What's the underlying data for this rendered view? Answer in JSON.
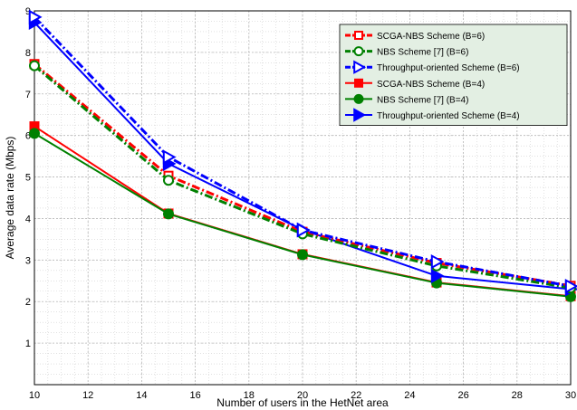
{
  "chart_data": {
    "type": "line",
    "xlabel": "Number of users in the HetNet area",
    "ylabel": "Average data rate (Mbps)",
    "xlim": [
      10,
      30
    ],
    "ylim": [
      0,
      9
    ],
    "xticks": [
      10,
      12,
      14,
      16,
      18,
      20,
      22,
      24,
      26,
      28,
      30
    ],
    "yticks": [
      1,
      2,
      3,
      4,
      5,
      6,
      7,
      8,
      9
    ],
    "grid": true,
    "minor_grid": true,
    "legend_position": "top-right",
    "legend_background": "#e3efe3",
    "x": [
      10,
      15,
      20,
      25,
      30
    ],
    "series": [
      {
        "name": "SCGA-NBS Scheme (B=6)",
        "values": [
          7.72,
          5.03,
          3.68,
          2.93,
          2.38
        ],
        "color": "#ff0000",
        "line": "dashdot",
        "marker": "square",
        "filled": false
      },
      {
        "name": "NBS Scheme [7] (B=6)",
        "values": [
          7.68,
          4.92,
          3.63,
          2.86,
          2.33
        ],
        "color": "#008000",
        "line": "dashdot",
        "marker": "circle",
        "filled": false
      },
      {
        "name": "Throughput-oriented Scheme (B=6)",
        "values": [
          8.85,
          5.48,
          3.72,
          2.96,
          2.37
        ],
        "color": "#0000ff",
        "line": "dashdot",
        "marker": "triangle-right",
        "filled": false
      },
      {
        "name": "SCGA-NBS Scheme (B=4)",
        "values": [
          6.22,
          4.12,
          3.14,
          2.46,
          2.13
        ],
        "color": "#ff0000",
        "line": "solid",
        "marker": "square",
        "filled": true
      },
      {
        "name": "NBS Scheme [7] (B=4)",
        "values": [
          6.05,
          4.11,
          3.13,
          2.45,
          2.12
        ],
        "color": "#008000",
        "line": "solid",
        "marker": "circle",
        "filled": true
      },
      {
        "name": "Throughput-oriented Scheme (B=4)",
        "values": [
          8.72,
          5.32,
          3.73,
          2.62,
          2.3
        ],
        "color": "#0000ff",
        "line": "solid",
        "marker": "triangle-right",
        "filled": true
      }
    ]
  }
}
